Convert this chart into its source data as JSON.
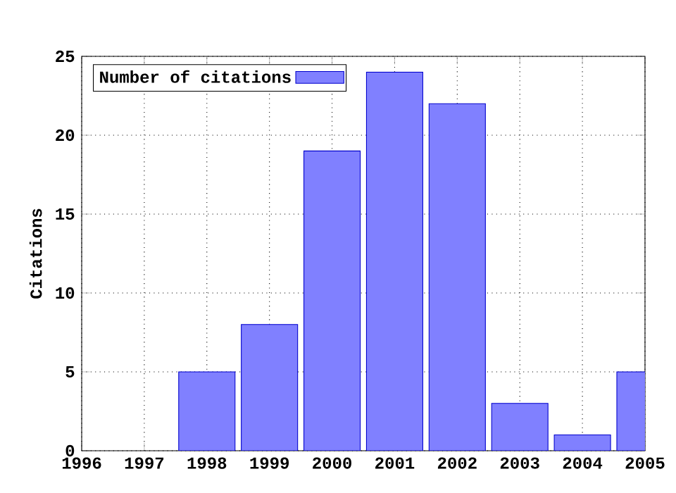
{
  "chart_data": {
    "type": "bar",
    "ylabel": "Citations",
    "x": [
      1998,
      1999,
      2000,
      2001,
      2002,
      2003,
      2004,
      2005
    ],
    "series": [
      {
        "name": "Number of citations",
        "color": "#8080ff",
        "values": [
          5,
          8,
          19,
          24,
          22,
          3,
          1,
          5
        ]
      }
    ],
    "xlim": [
      1996,
      2005
    ],
    "xticks": [
      1996,
      1997,
      1998,
      1999,
      2000,
      2001,
      2002,
      2003,
      2004,
      2005
    ],
    "ylim": [
      0,
      25
    ],
    "yticks": [
      0,
      5,
      10,
      15,
      20,
      25
    ],
    "grid": true,
    "legend": "top left"
  }
}
